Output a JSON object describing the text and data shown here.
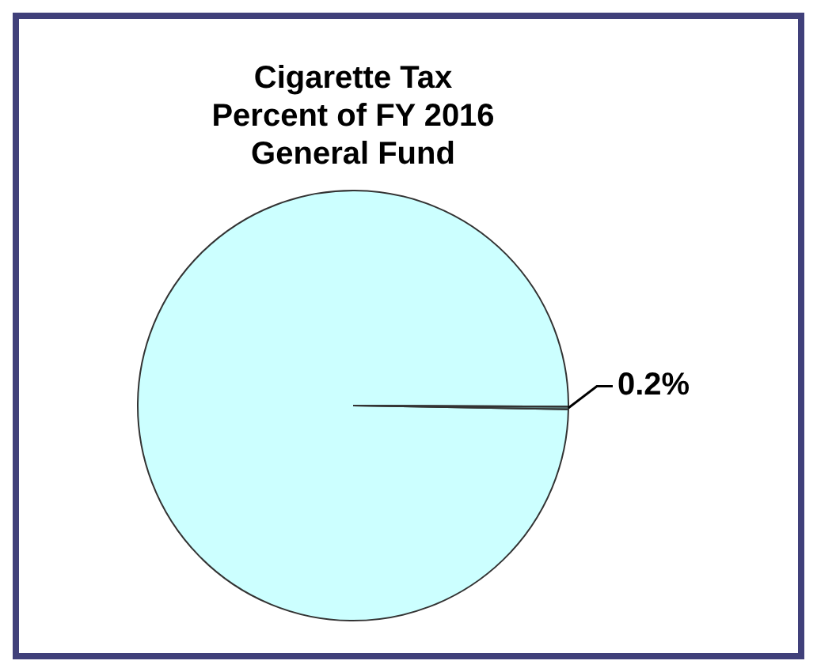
{
  "chart_data": {
    "type": "pie",
    "title": "Cigarette Tax\nPercent of FY 2016\nGeneral Fund",
    "categories": [
      null,
      null
    ],
    "values": [
      99.8,
      0.2
    ],
    "colors": [
      "#ccffff",
      "#5f7f7f"
    ],
    "value_labels": [
      null,
      "0.2%"
    ],
    "legend": false
  }
}
